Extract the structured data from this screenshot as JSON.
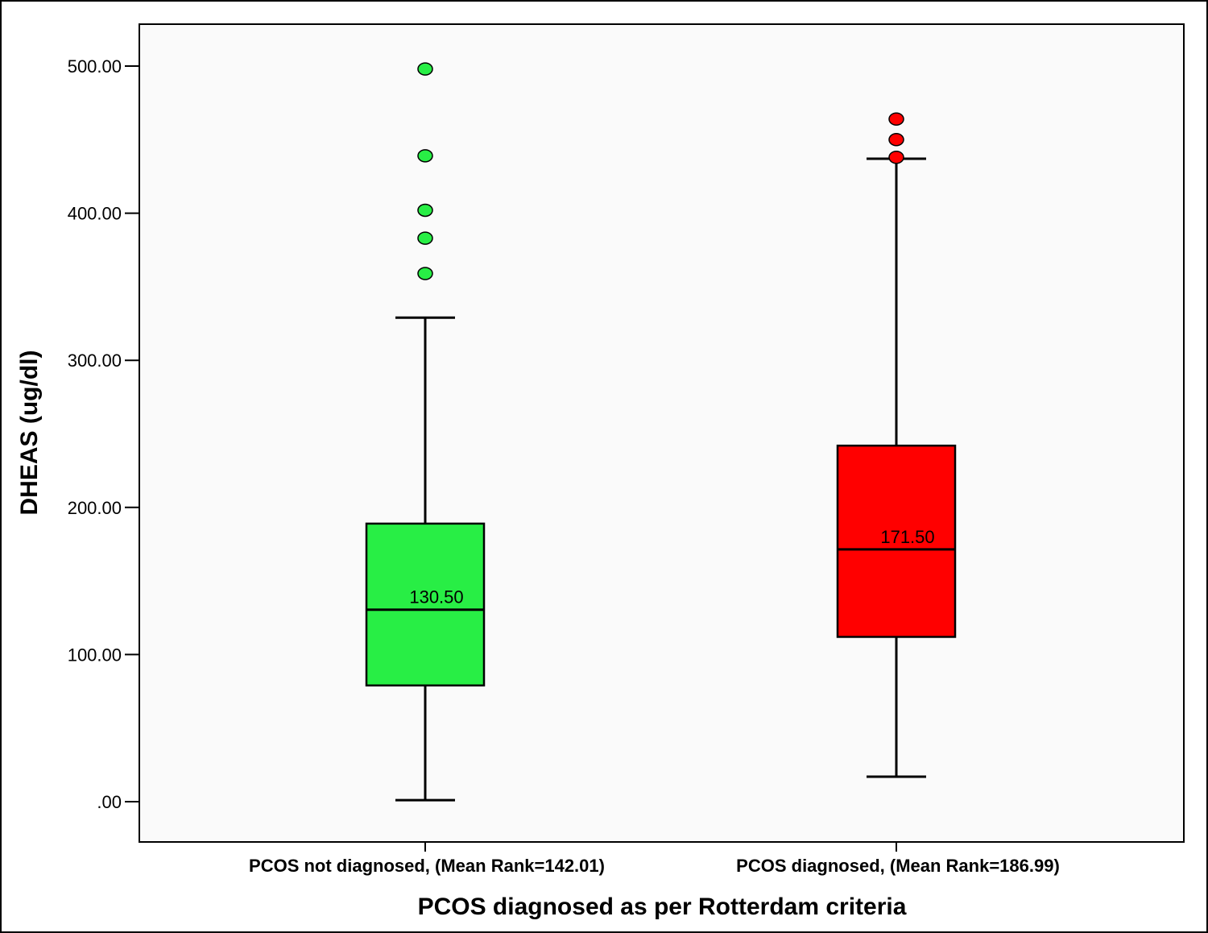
{
  "chart_data": {
    "type": "box",
    "xlabel": "PCOS diagnosed as per Rotterdam criteria",
    "ylabel": "DHEAS (ug/dl)",
    "ylim": [
      0,
      500
    ],
    "yticks": [
      0,
      100,
      200,
      300,
      400,
      500
    ],
    "ytick_labels": [
      ".00",
      "100.00",
      "200.00",
      "300.00",
      "400.00",
      "500.00"
    ],
    "grid": false,
    "categories": [
      "PCOS not diagnosed, (Mean Rank=142.01)",
      "PCOS diagnosed, (Mean Rank=186.99)"
    ],
    "series": [
      {
        "category": "PCOS not diagnosed, (Mean Rank=142.01)",
        "color": "#28ee45",
        "whisker_low": 1,
        "q1": 79,
        "median": 130.5,
        "q3": 189,
        "whisker_high": 329,
        "median_label": "130.50",
        "outliers": [
          498,
          439,
          402,
          383,
          359
        ]
      },
      {
        "category": "PCOS diagnosed, (Mean Rank=186.99)",
        "color": "#ff0000",
        "whisker_low": 17,
        "q1": 112,
        "median": 171.5,
        "q3": 242,
        "whisker_high": 437,
        "median_label": "171.50",
        "outliers": [
          464,
          450,
          438
        ]
      }
    ],
    "plot_background": "#fafafa"
  }
}
